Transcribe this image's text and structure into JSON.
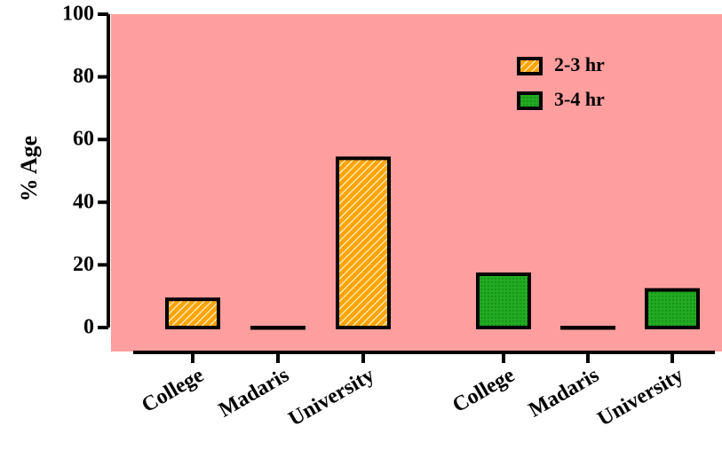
{
  "chart_data": {
    "type": "bar",
    "ylabel": "% Age",
    "ylim": [
      0,
      100
    ],
    "yticks": [
      0,
      20,
      40,
      60,
      80,
      100
    ],
    "grid": false,
    "legend_position": "top-right",
    "plot_background": "#FF9E9E",
    "series": [
      {
        "name": "2-3 hr",
        "color": "#FFA500",
        "pattern": "diagonal-hatch",
        "categories": [
          "College",
          "Madaris",
          "University"
        ],
        "values": [
          9,
          0,
          54
        ]
      },
      {
        "name": "3-4 hr",
        "color": "#22AA22",
        "pattern": "dots",
        "categories": [
          "College",
          "Madaris",
          "University"
        ],
        "values": [
          17,
          0,
          12
        ]
      }
    ]
  }
}
